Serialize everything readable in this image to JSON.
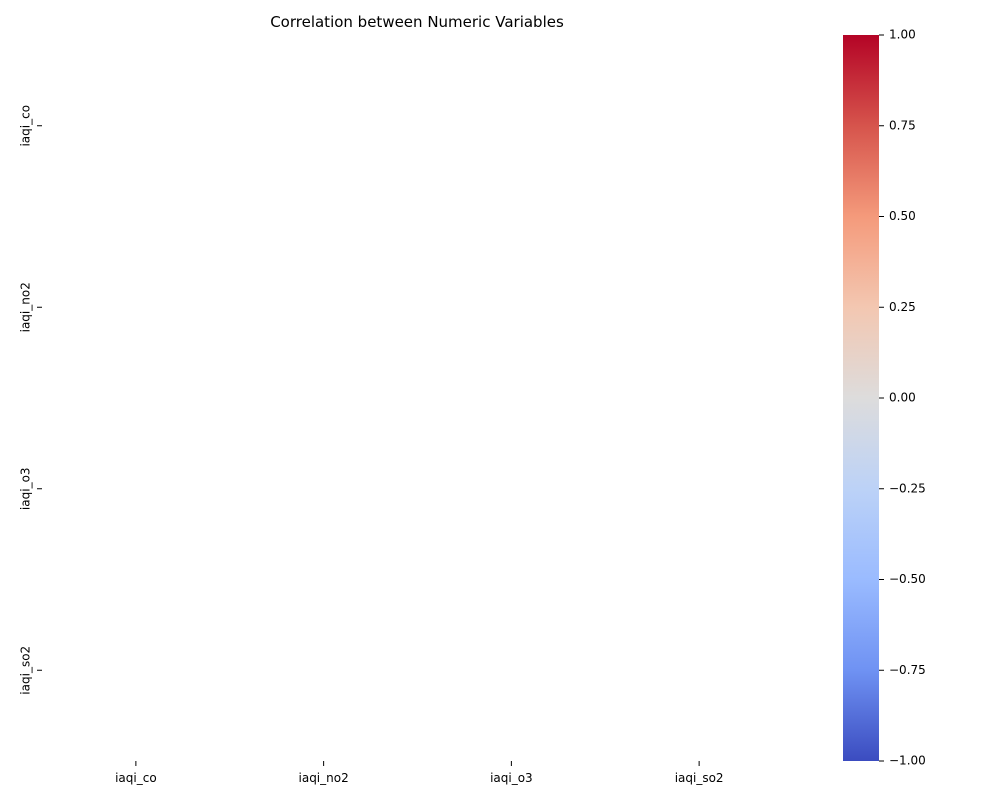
{
  "chart_data": {
    "type": "heatmap",
    "title": "Correlation between Numeric Variables",
    "xlabel": "",
    "ylabel": "",
    "x_categories": [
      "iaqi_co",
      "iaqi_no2",
      "iaqi_o3",
      "iaqi_so2"
    ],
    "y_categories": [
      "iaqi_co",
      "iaqi_no2",
      "iaqi_o3",
      "iaqi_so2"
    ],
    "values": [
      [
        null,
        null,
        null,
        null
      ],
      [
        null,
        null,
        null,
        null
      ],
      [
        null,
        null,
        null,
        null
      ],
      [
        null,
        null,
        null,
        null
      ]
    ],
    "colormap": "coolwarm",
    "colorbar": {
      "vmin": -1.0,
      "vmax": 1.0,
      "ticks": [
        1.0,
        0.75,
        0.5,
        0.25,
        0.0,
        -0.25,
        -0.5,
        -0.75,
        -1.0
      ],
      "tick_labels": [
        "1.00",
        "0.75",
        "0.50",
        "0.25",
        "0.00",
        "−0.25",
        "−0.50",
        "−0.75",
        "−1.00"
      ],
      "colors": {
        "top": "#b40426",
        "upper_mid": "#f49a7b",
        "mid": "#dddcdc",
        "lower_mid": "#9abbff",
        "bottom": "#3b4cc0"
      }
    },
    "grid": false
  }
}
